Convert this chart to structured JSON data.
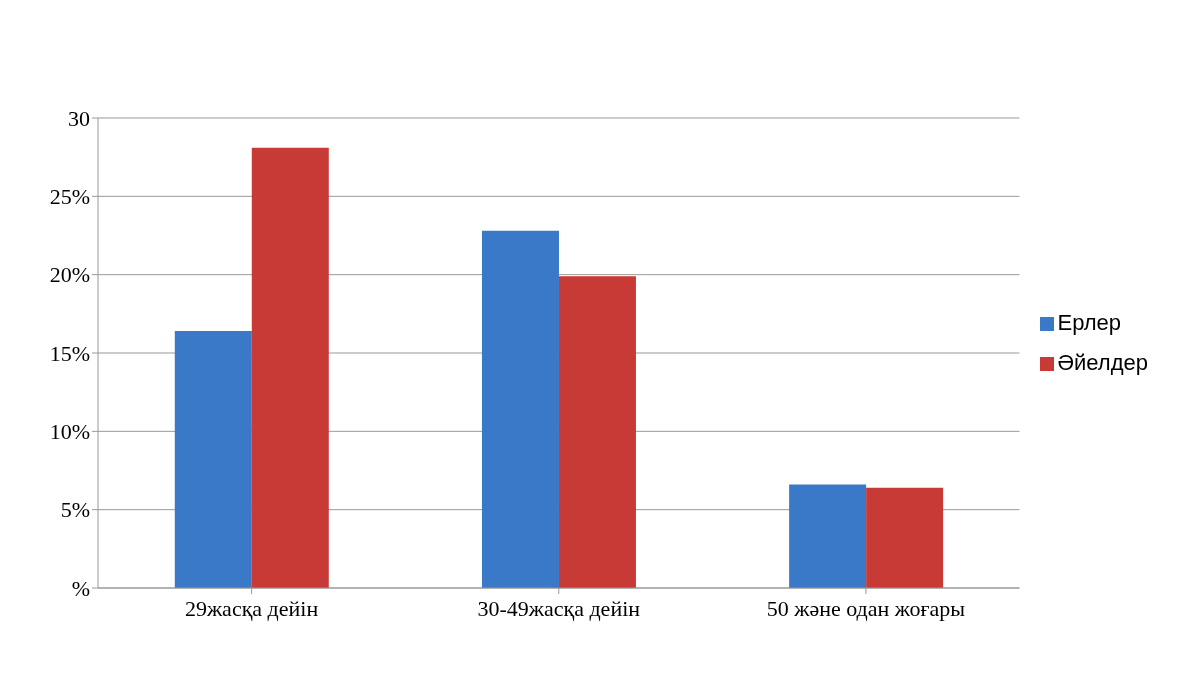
{
  "chart_data": {
    "type": "bar",
    "categories": [
      "29жасқа дейін",
      "30-49жасқа дейін",
      "50 және одан жоғары"
    ],
    "series": [
      {
        "name": "Ерлер",
        "color": "#3a78c8",
        "values": [
          16.4,
          22.8,
          6.6
        ]
      },
      {
        "name": "Әйелдер",
        "color": "#c83a36",
        "values": [
          28.1,
          19.9,
          6.4
        ]
      }
    ],
    "ylim": [
      0,
      30
    ],
    "yticks": [
      {
        "value": 0,
        "label": "%"
      },
      {
        "value": 5,
        "label": "5%"
      },
      {
        "value": 10,
        "label": "10%"
      },
      {
        "value": 15,
        "label": "15%"
      },
      {
        "value": 20,
        "label": "20%"
      },
      {
        "value": 25,
        "label": "25%"
      },
      {
        "value": 30,
        "label": "30"
      }
    ],
    "grid": "y",
    "legend": "right"
  }
}
